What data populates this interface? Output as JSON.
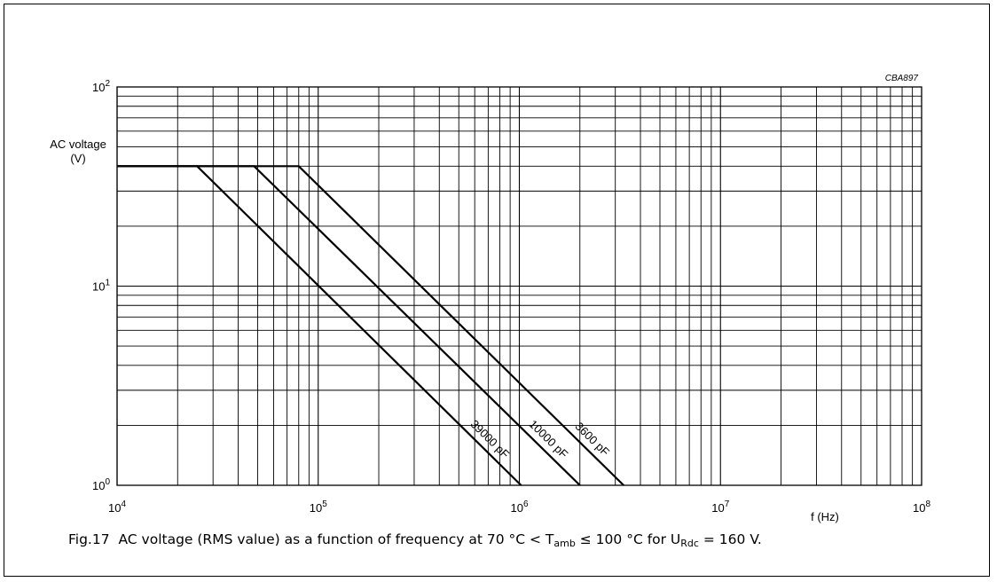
{
  "figure": {
    "code": "CBA897",
    "caption": {
      "fig_label": "Fig.17",
      "text_before_tamb": "AC voltage (RMS value) as a function of frequency at 70 °C < T",
      "tamb_sub": "amb",
      "text_middle": " ≤ 100 °C for U",
      "urdc_sub": "Rdc",
      "text_end": " = 160 V."
    }
  },
  "chart_data": {
    "type": "line",
    "x_scale": "log",
    "y_scale": "log",
    "xlim": [
      10000,
      100000000
    ],
    "ylim": [
      1,
      100
    ],
    "grid": true,
    "ylabel_line1": "AC voltage",
    "ylabel_line2": "(V)",
    "xlabel": "f (Hz)",
    "x_ticks": [
      {
        "base": "10",
        "exp": "4",
        "value": 10000
      },
      {
        "base": "10",
        "exp": "5",
        "value": 100000
      },
      {
        "base": "10",
        "exp": "6",
        "value": 1000000
      },
      {
        "base": "10",
        "exp": "7",
        "value": 10000000
      },
      {
        "base": "10",
        "exp": "8",
        "value": 100000000
      }
    ],
    "y_ticks": [
      {
        "base": "10",
        "exp": "0",
        "value": 1
      },
      {
        "base": "10",
        "exp": "1",
        "value": 10
      },
      {
        "base": "10",
        "exp": "2",
        "value": 100
      }
    ],
    "series": [
      {
        "name": "3600 pF",
        "x": [
          10000,
          80000,
          3300000
        ],
        "y": [
          40,
          40,
          1
        ]
      },
      {
        "name": "10000 pF",
        "x": [
          10000,
          48000,
          2000000
        ],
        "y": [
          40,
          40,
          1
        ]
      },
      {
        "name": "39000 pF",
        "x": [
          10000,
          25000,
          1020000
        ],
        "y": [
          40,
          40,
          1
        ]
      }
    ]
  }
}
